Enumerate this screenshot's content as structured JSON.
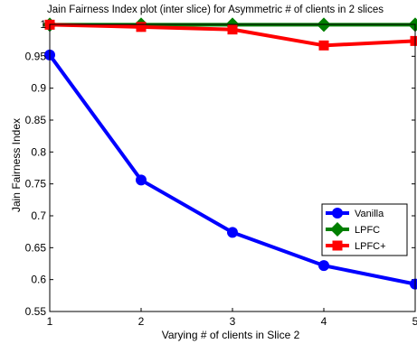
{
  "chart_data": {
    "type": "line",
    "title": "Jain Fairness Index plot (inter slice) for Asymmetric # of clients in 2 slices",
    "xlabel": "Varying # of clients in Slice 2",
    "ylabel": "Jain Fairness Index",
    "x": [
      1,
      2,
      3,
      4,
      5
    ],
    "xlim": [
      1,
      5
    ],
    "ylim": [
      0.55,
      1
    ],
    "xticks": [
      "1",
      "2",
      "3",
      "4",
      "5"
    ],
    "yticks": [
      "0.55",
      "0.6",
      "0.65",
      "0.7",
      "0.75",
      "0.8",
      "0.85",
      "0.9",
      "0.95",
      "1"
    ],
    "grid": false,
    "legend_position": "lower-right",
    "series": [
      {
        "name": "Vanilla",
        "color": "#0000ff",
        "marker": "circle",
        "values": [
          0.952,
          0.756,
          0.674,
          0.622,
          0.593
        ]
      },
      {
        "name": "LPFC",
        "color": "#007f00",
        "marker": "diamond",
        "values": [
          0.9995,
          0.9995,
          0.9995,
          0.9995,
          0.9995
        ]
      },
      {
        "name": "LPFC+",
        "color": "#ff0000",
        "marker": "square",
        "values": [
          0.9995,
          0.996,
          0.992,
          0.967,
          0.974
        ]
      }
    ]
  }
}
